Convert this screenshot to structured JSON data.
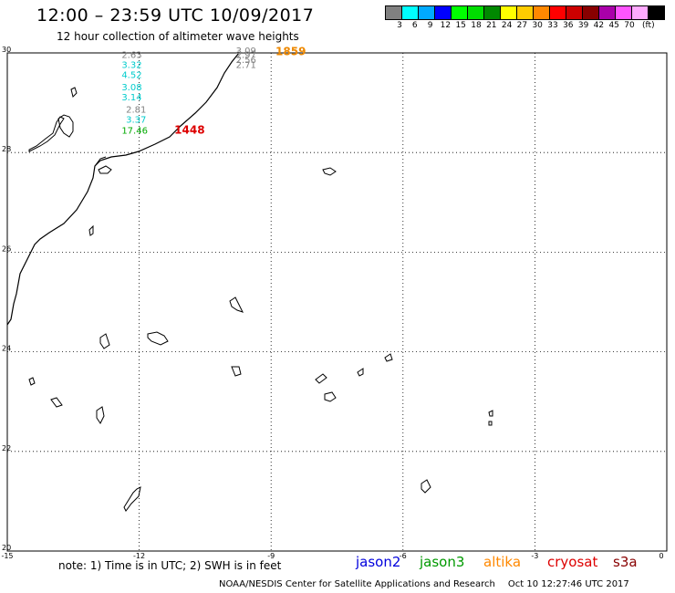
{
  "header": {
    "title": "12:00 – 23:59 UTC 10/09/2017",
    "subtitle": "12 hour collection of altimeter wave heights"
  },
  "scale": {
    "colors": [
      "#808080",
      "#00ffff",
      "#00aaff",
      "#0000ff",
      "#00ff00",
      "#00dd00",
      "#008800",
      "#ffff00",
      "#ffcc00",
      "#ff8800",
      "#ff0000",
      "#cc0000",
      "#880000",
      "#aa00aa",
      "#ff55ff",
      "#ffaaff",
      "#000000"
    ],
    "labels": [
      "3",
      "6",
      "9",
      "12",
      "15",
      "18",
      "21",
      "24",
      "27",
      "30",
      "33",
      "36",
      "39",
      "42",
      "45",
      "70",
      "(ft)"
    ]
  },
  "map": {
    "lon_ticks": [
      "-15",
      "-12",
      "-9",
      "-6",
      "-3",
      "0"
    ],
    "lat_ticks": [
      "30",
      "28",
      "26",
      "24",
      "22",
      "20"
    ],
    "lon_range": [
      -15,
      0
    ],
    "lat_range": [
      20,
      30
    ]
  },
  "measurements": [
    {
      "lon": -12.4,
      "lat": 29.9,
      "value": "2.63",
      "color": "#808080"
    },
    {
      "lon": -12.4,
      "lat": 29.7,
      "value": "3.32",
      "color": "#00cccc"
    },
    {
      "lon": -12.4,
      "lat": 29.5,
      "value": "4.52",
      "color": "#00cccc"
    },
    {
      "lon": -12.4,
      "lat": 29.25,
      "value": "3.08",
      "color": "#00cccc"
    },
    {
      "lon": -12.4,
      "lat": 29.05,
      "value": "3.14",
      "color": "#00cccc"
    },
    {
      "lon": -12.3,
      "lat": 28.8,
      "value": "2.81",
      "color": "#808080"
    },
    {
      "lon": -12.3,
      "lat": 28.6,
      "value": "3.37",
      "color": "#00cccc"
    },
    {
      "lon": -12.4,
      "lat": 28.38,
      "value": "17.46",
      "color": "#00aa00"
    },
    {
      "lon": -9.8,
      "lat": 29.98,
      "value": "3.09",
      "color": "#808080"
    },
    {
      "lon": -9.8,
      "lat": 29.9,
      "value": "2.97",
      "color": "#808080"
    },
    {
      "lon": -9.8,
      "lat": 29.8,
      "value": "2.56",
      "color": "#808080"
    },
    {
      "lon": -9.8,
      "lat": 29.7,
      "value": "2.71",
      "color": "#808080"
    }
  ],
  "pass_times": [
    {
      "lon": -11.2,
      "lat": 28.38,
      "value": "1448",
      "color": "#dd0000"
    },
    {
      "lon": -8.9,
      "lat": 29.95,
      "value": "1859",
      "color": "#ee8800"
    }
  ],
  "note": "note: 1) Time is in UTC; 2) SWH is in feet",
  "legend": [
    {
      "label": "jason2",
      "color": "#0000dd"
    },
    {
      "label": "jason3",
      "color": "#009900"
    },
    {
      "label": "altika",
      "color": "#ff8800"
    },
    {
      "label": "cryosat",
      "color": "#dd0000"
    },
    {
      "label": "s3a",
      "color": "#880000"
    }
  ],
  "footer": {
    "source": "NOAA/NESDIS Center for Satellite Applications and Research",
    "timestamp": "Oct 10 12:27:46 UTC 2017"
  }
}
